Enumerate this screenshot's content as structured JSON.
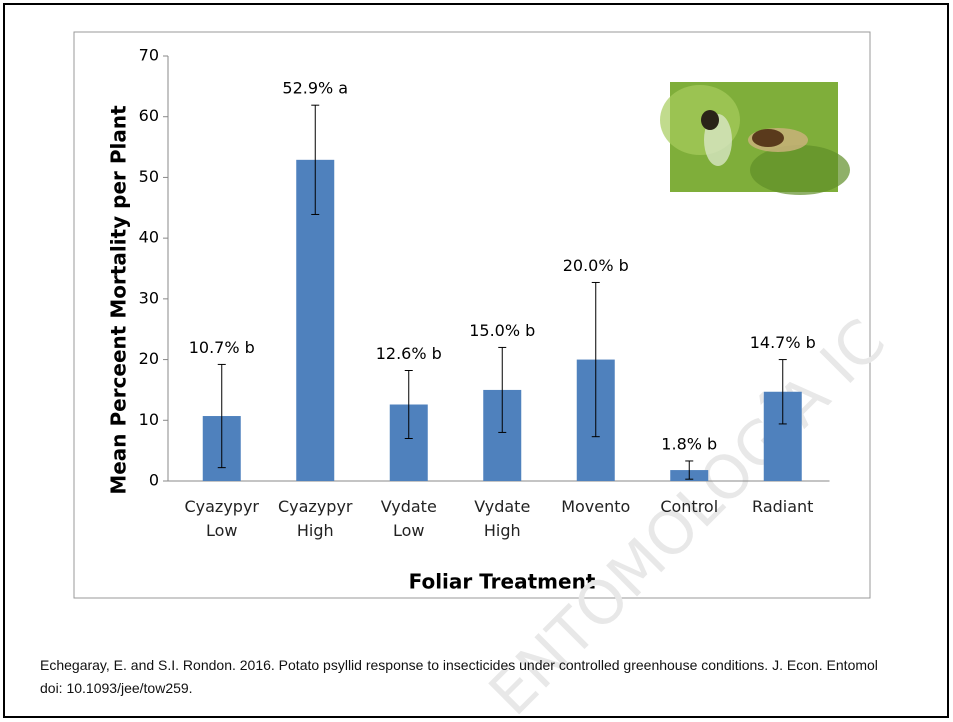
{
  "chart_data": {
    "type": "bar",
    "y_label": "Mean Perceent Mortality per Plant",
    "x_label": "Foliar Treatment",
    "categories": [
      "Cyazypyr Low",
      "Cyazypyr High",
      "Vydate Low",
      "Vydate High",
      "Movento",
      "Control",
      "Radiant"
    ],
    "values": [
      10.7,
      52.9,
      12.6,
      15.0,
      20.0,
      1.8,
      14.7
    ],
    "value_labels": [
      "10.7% b",
      "52.9% a",
      "12.6% b",
      "15.0% b",
      "20.0% b",
      "1.8% b",
      "14.7% b"
    ],
    "errors": [
      8.5,
      9,
      5.6,
      7,
      12.7,
      1.5,
      5.3
    ],
    "color": "#4f81bd",
    "ylim": [
      0,
      70
    ],
    "yticks": [
      0,
      10,
      20,
      30,
      40,
      50,
      60,
      70
    ],
    "grid": false
  },
  "citation": "Echegaray, E. and S.I. Rondon. 2016.  Potato psyllid response to insecticides under controlled greenhouse conditions. J. Econ. Entomol doi: 10.1093/jee/tow259.",
  "watermark": "ENTOMOLOGÍA IC"
}
